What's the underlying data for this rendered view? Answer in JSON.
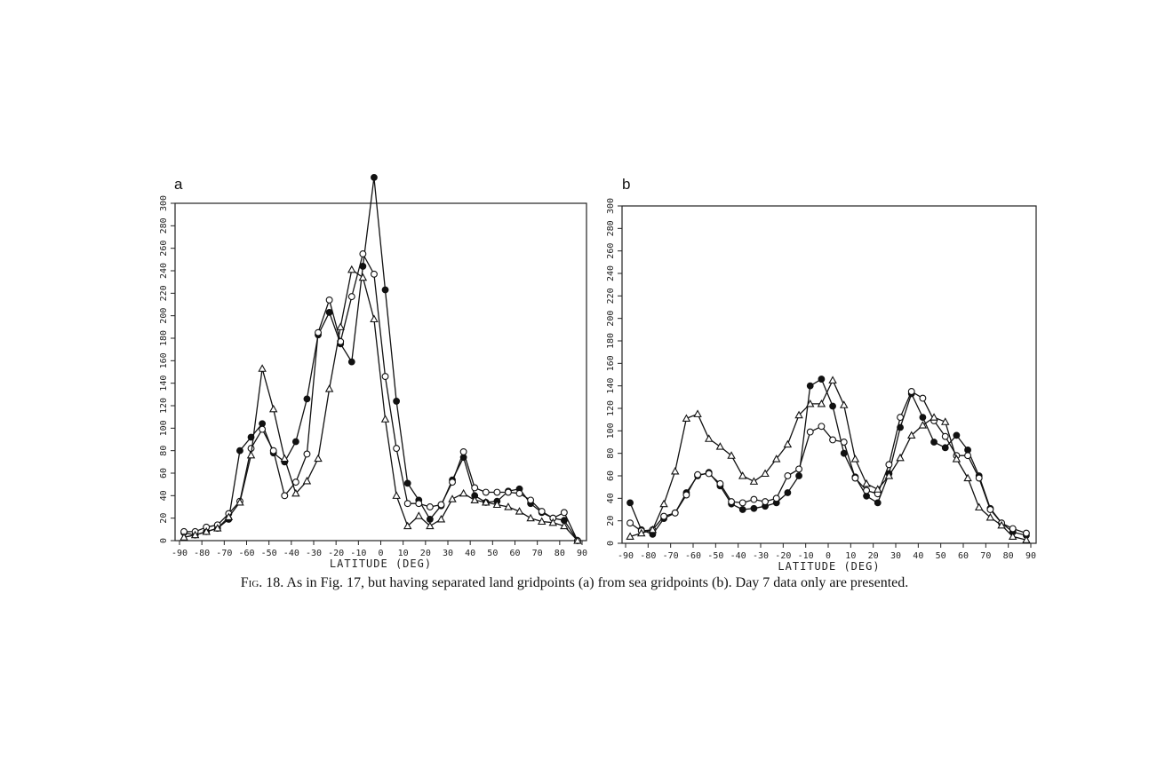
{
  "caption": {
    "figure_label": "Fig. 18.",
    "text": "As in Fig. 17, but having separated land gridpoints (a) from sea gridpoints (b). Day 7 data only are presented."
  },
  "chart_data": [
    {
      "type": "line",
      "panel_label": "a",
      "xlabel": "LATITUDE (DEG)",
      "ylabel": "",
      "xlim": [
        -90,
        90
      ],
      "ylim": [
        0,
        300
      ],
      "xticks": [
        -90,
        -80,
        -70,
        -60,
        -50,
        -40,
        -30,
        -20,
        -10,
        0,
        10,
        20,
        30,
        40,
        50,
        60,
        70,
        80,
        90
      ],
      "yticks": [
        0,
        20,
        40,
        60,
        80,
        100,
        120,
        140,
        160,
        180,
        200,
        220,
        240,
        260,
        280,
        300
      ],
      "grid": false,
      "series": [
        {
          "marker": "filled-circle",
          "x": [
            -88,
            -83,
            -78,
            -73,
            -68,
            -63,
            -58,
            -53,
            -48,
            -43,
            -38,
            -33,
            -28,
            -23,
            -18,
            -13,
            -8,
            -3,
            2,
            7,
            12,
            17,
            22,
            27,
            32,
            37,
            42,
            47,
            52,
            57,
            62,
            67,
            72,
            77,
            82,
            88
          ],
          "y": [
            7,
            5,
            8,
            11,
            19,
            80,
            92,
            104,
            78,
            70,
            88,
            126,
            183,
            203,
            175,
            159,
            244,
            323,
            223,
            124,
            51,
            36,
            19,
            31,
            54,
            74,
            40,
            34,
            35,
            44,
            46,
            33,
            25,
            20,
            18,
            0
          ]
        },
        {
          "marker": "open-circle",
          "x": [
            -88,
            -83,
            -78,
            -73,
            -68,
            -63,
            -58,
            -53,
            -48,
            -43,
            -38,
            -33,
            -28,
            -23,
            -18,
            -13,
            -8,
            -3,
            2,
            7,
            12,
            17,
            22,
            27,
            32,
            37,
            42,
            47,
            52,
            57,
            62,
            67,
            72,
            77,
            82,
            88
          ],
          "y": [
            8,
            8,
            12,
            14,
            24,
            35,
            82,
            99,
            80,
            40,
            52,
            77,
            185,
            214,
            177,
            217,
            255,
            237,
            146,
            82,
            33,
            33,
            30,
            32,
            52,
            79,
            47,
            43,
            43,
            43,
            42,
            36,
            26,
            20,
            25,
            0
          ]
        },
        {
          "marker": "triangle",
          "x": [
            -88,
            -83,
            -78,
            -73,
            -68,
            -63,
            -58,
            -53,
            -48,
            -43,
            -38,
            -33,
            -28,
            -23,
            -18,
            -13,
            -8,
            -3,
            2,
            7,
            12,
            17,
            22,
            27,
            32,
            37,
            42,
            47,
            52,
            57,
            62,
            67,
            72,
            77,
            82,
            88
          ],
          "y": [
            3,
            5,
            8,
            11,
            21,
            34,
            76,
            153,
            117,
            73,
            42,
            53,
            73,
            135,
            190,
            241,
            234,
            197,
            108,
            40,
            13,
            22,
            13,
            19,
            37,
            42,
            36,
            34,
            32,
            30,
            26,
            20,
            17,
            16,
            13,
            0
          ]
        }
      ]
    },
    {
      "type": "line",
      "panel_label": "b",
      "xlabel": "LATITUDE (DEG)",
      "ylabel": "",
      "xlim": [
        -90,
        90
      ],
      "ylim": [
        0,
        300
      ],
      "xticks": [
        -90,
        -80,
        -70,
        -60,
        -50,
        -40,
        -30,
        -20,
        -10,
        0,
        10,
        20,
        30,
        40,
        50,
        60,
        70,
        80,
        90
      ],
      "yticks": [
        0,
        20,
        40,
        60,
        80,
        100,
        120,
        140,
        160,
        180,
        200,
        220,
        240,
        260,
        280,
        300
      ],
      "grid": false,
      "series": [
        {
          "marker": "filled-circle",
          "x": [
            -88,
            -83,
            -78,
            -73,
            -68,
            -63,
            -58,
            -53,
            -48,
            -43,
            -38,
            -33,
            -28,
            -23,
            -18,
            -13,
            -8,
            -3,
            2,
            7,
            12,
            17,
            22,
            27,
            32,
            37,
            42,
            47,
            52,
            57,
            62,
            67,
            72,
            77,
            82,
            88
          ],
          "y": [
            36,
            12,
            8,
            22,
            27,
            45,
            60,
            63,
            51,
            35,
            30,
            31,
            33,
            36,
            45,
            60,
            140,
            146,
            122,
            80,
            59,
            42,
            36,
            62,
            103,
            133,
            112,
            90,
            85,
            96,
            83,
            60,
            31,
            18,
            10,
            7
          ]
        },
        {
          "marker": "open-circle",
          "x": [
            -88,
            -83,
            -78,
            -73,
            -68,
            -63,
            -58,
            -53,
            -48,
            -43,
            -38,
            -33,
            -28,
            -23,
            -18,
            -13,
            -8,
            -3,
            2,
            7,
            12,
            17,
            22,
            27,
            32,
            37,
            42,
            47,
            52,
            57,
            62,
            67,
            72,
            77,
            82,
            88
          ],
          "y": [
            18,
            11,
            12,
            24,
            27,
            43,
            61,
            62,
            53,
            37,
            36,
            39,
            37,
            40,
            60,
            66,
            99,
            104,
            92,
            90,
            58,
            47,
            44,
            70,
            112,
            135,
            129,
            109,
            95,
            78,
            78,
            58,
            30,
            18,
            13,
            9
          ]
        },
        {
          "marker": "triangle",
          "x": [
            -88,
            -83,
            -78,
            -73,
            -68,
            -63,
            -58,
            -53,
            -48,
            -43,
            -38,
            -33,
            -28,
            -23,
            -18,
            -13,
            -8,
            -3,
            2,
            7,
            12,
            17,
            22,
            27,
            32,
            37,
            42,
            47,
            52,
            57,
            62,
            67,
            72,
            77,
            82,
            88
          ],
          "y": [
            6,
            9,
            12,
            35,
            64,
            111,
            115,
            93,
            86,
            78,
            60,
            55,
            62,
            75,
            88,
            114,
            124,
            124,
            145,
            123,
            75,
            53,
            48,
            60,
            76,
            96,
            105,
            112,
            108,
            75,
            58,
            32,
            23,
            16,
            6,
            3
          ]
        }
      ]
    }
  ]
}
